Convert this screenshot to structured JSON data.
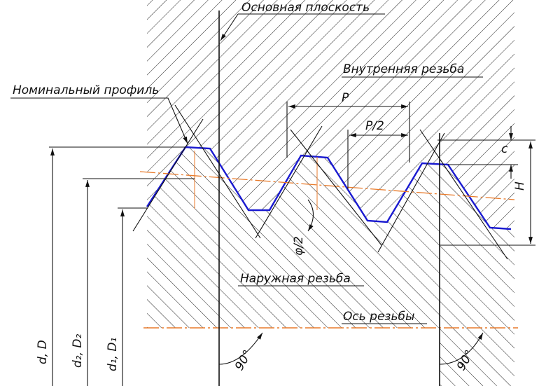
{
  "labels": {
    "base_plane": "Основная плоскость",
    "internal_thread": "Внутренняя резьба",
    "nominal_profile": "Номинальный профиль",
    "pitch": "P",
    "half_pitch": "P/2",
    "c": "c",
    "height": "H",
    "half_angle": "φ/2",
    "external_thread": "Наружная резьба",
    "thread_axis": "Ось резьбы",
    "angle_left": "90°",
    "angle_right": "90°",
    "major_diameter": "d, D",
    "pitch_diameter": "d₂, D₂",
    "minor_diameter": "d₁, D₁"
  }
}
